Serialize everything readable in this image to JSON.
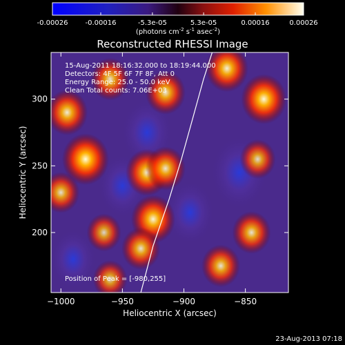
{
  "chart_data": {
    "type": "heatmap",
    "title": "Reconstructed RHESSI Image",
    "colorbar": {
      "ticks": [
        "-0.00026",
        "-0.00016",
        "-5.3e-05",
        "5.3e-05",
        "0.00016",
        "0.00026"
      ],
      "range": [
        -0.00026,
        0.00026
      ],
      "units_prefix": "(photons cm",
      "units_exp1": "-2",
      "units_mid": " s",
      "units_exp2": "-1",
      "units_mid2": " asec",
      "units_exp3": "-2",
      "units_suffix": ")"
    },
    "xlabel": "Heliocentric X (arcsec)",
    "ylabel": "Heliocentric Y (arcsec)",
    "xlim": [
      -1008,
      -815
    ],
    "ylim": [
      155,
      335
    ],
    "xticks": [
      {
        "value": -1000,
        "label": "−1000"
      },
      {
        "value": -950,
        "label": "−950"
      },
      {
        "value": -900,
        "label": "−900"
      },
      {
        "value": -850,
        "label": "−850"
      }
    ],
    "yticks": [
      {
        "value": 200,
        "label": "200"
      },
      {
        "value": 250,
        "label": "250"
      },
      {
        "value": 300,
        "label": "300"
      }
    ],
    "annotations": [
      "15-Aug-2011 18:16:32.000 to 18:19:44.000",
      "Detectors: 4F 5F 6F 7F 8F, Att 0",
      "Energy Range: 25.0 - 50.0 keV",
      "Clean    Total counts: 7.06E+03"
    ],
    "peak_label": "Position of Peak = [-980,255]",
    "peak": [
      -980,
      255
    ],
    "bright_sources": [
      {
        "x": -980,
        "y": 255,
        "intensity": 1.0
      },
      {
        "x": -835,
        "y": 300,
        "intensity": 0.95
      },
      {
        "x": -865,
        "y": 323,
        "intensity": 0.85
      },
      {
        "x": -915,
        "y": 305,
        "intensity": 0.75
      },
      {
        "x": -995,
        "y": 290,
        "intensity": 0.8
      },
      {
        "x": -960,
        "y": 315,
        "intensity": 0.7
      },
      {
        "x": -930,
        "y": 245,
        "intensity": 0.85
      },
      {
        "x": -915,
        "y": 248,
        "intensity": 0.75
      },
      {
        "x": -925,
        "y": 210,
        "intensity": 0.9
      },
      {
        "x": -935,
        "y": 188,
        "intensity": 0.7
      },
      {
        "x": -1000,
        "y": 230,
        "intensity": 0.65
      },
      {
        "x": -965,
        "y": 200,
        "intensity": 0.55
      },
      {
        "x": -845,
        "y": 200,
        "intensity": 0.7
      },
      {
        "x": -870,
        "y": 175,
        "intensity": 0.7
      },
      {
        "x": -840,
        "y": 255,
        "intensity": 0.6
      },
      {
        "x": -960,
        "y": 165,
        "intensity": 0.55
      }
    ],
    "dark_regions": [
      {
        "x": -855,
        "y": 245,
        "intensity": 1.0
      },
      {
        "x": -930,
        "y": 275,
        "intensity": 0.8
      },
      {
        "x": -895,
        "y": 215,
        "intensity": 0.7
      },
      {
        "x": -950,
        "y": 235,
        "intensity": 0.7
      },
      {
        "x": -990,
        "y": 180,
        "intensity": 0.6
      }
    ],
    "limb_curve": [
      [
        -935,
        155
      ],
      [
        -925,
        190
      ],
      [
        -912,
        225
      ],
      [
        -902,
        255
      ],
      [
        -893,
        285
      ],
      [
        -884,
        315
      ],
      [
        -877,
        335
      ]
    ]
  },
  "footer_date": "23-Aug-2013 07:18"
}
